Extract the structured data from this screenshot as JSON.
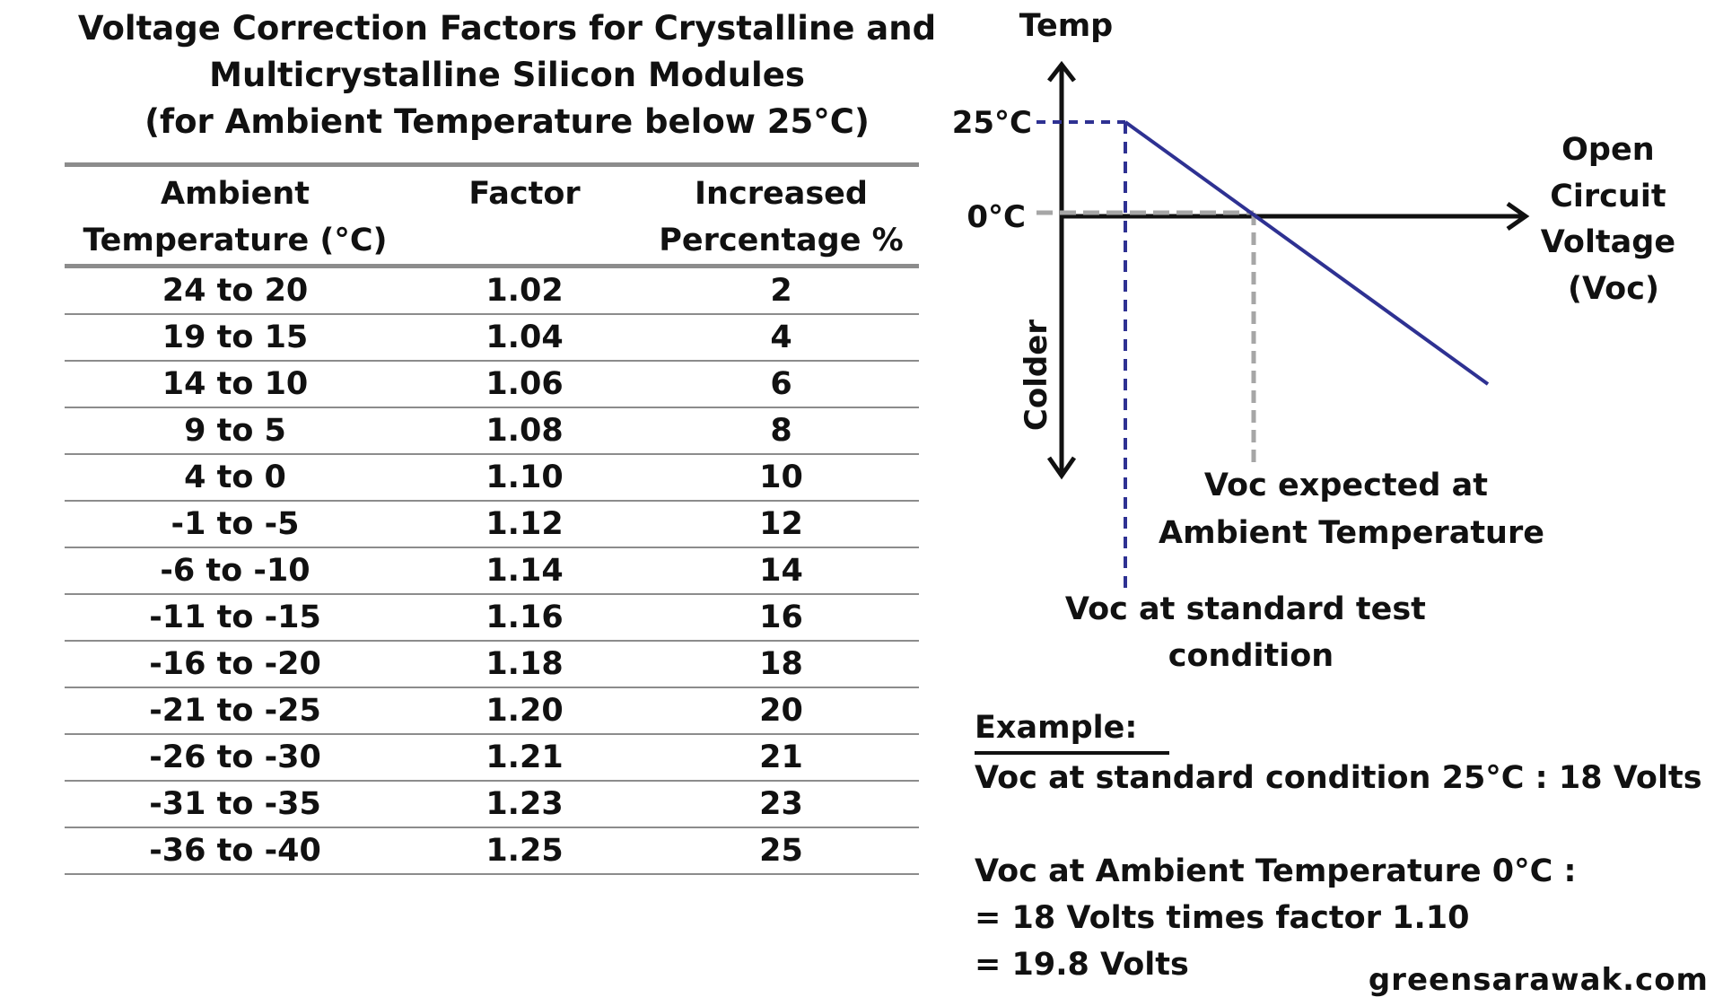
{
  "title": {
    "line1": "Voltage Correction Factors for Crystalline and",
    "line2": "Multicrystalline Silicon Modules",
    "line3": "(for Ambient Temperature below 25°C)"
  },
  "table": {
    "headers": [
      [
        "Ambient",
        "Temperature (°C)"
      ],
      [
        "Factor",
        ""
      ],
      [
        "Increased",
        "Percentage %"
      ]
    ],
    "rows": [
      [
        "24 to 20",
        "1.02",
        "2"
      ],
      [
        "19 to 15",
        "1.04",
        "4"
      ],
      [
        "14 to 10",
        "1.06",
        "6"
      ],
      [
        "9 to 5",
        "1.08",
        "8"
      ],
      [
        "4 to 0",
        "1.10",
        "10"
      ],
      [
        "-1 to -5",
        "1.12",
        "12"
      ],
      [
        "-6 to -10",
        "1.14",
        "14"
      ],
      [
        "-11 to -15",
        "1.16",
        "16"
      ],
      [
        "-16 to -20",
        "1.18",
        "18"
      ],
      [
        "-21 to -25",
        "1.20",
        "20"
      ],
      [
        "-26 to -30",
        "1.21",
        "21"
      ],
      [
        "-31 to -35",
        "1.23",
        "23"
      ],
      [
        "-36 to -40",
        "1.25",
        "25"
      ]
    ]
  },
  "diagram": {
    "y_axis_label": "Temp",
    "tick_25": "25°C",
    "tick_0": "0°C",
    "colder_label": "Colder",
    "x_axis_label": [
      "Open",
      "Circuit",
      "Voltage",
      "(Voc)"
    ],
    "expected_label": [
      "Voc expected at",
      "Ambient Temperature"
    ],
    "stc_label": [
      "Voc at standard test",
      "condition"
    ],
    "colors": {
      "line": "#2e3192",
      "grey_dash": "#a6a6a6",
      "axis": "#111111"
    }
  },
  "example": {
    "heading": "Example:",
    "line1": "Voc at standard condition 25°C : 18 Volts",
    "line2": "Voc at Ambient Temperature 0°C :",
    "line3": "= 18 Volts times factor 1.10",
    "line4": "= 19.8 Volts"
  },
  "footer": "greensarawak.com"
}
